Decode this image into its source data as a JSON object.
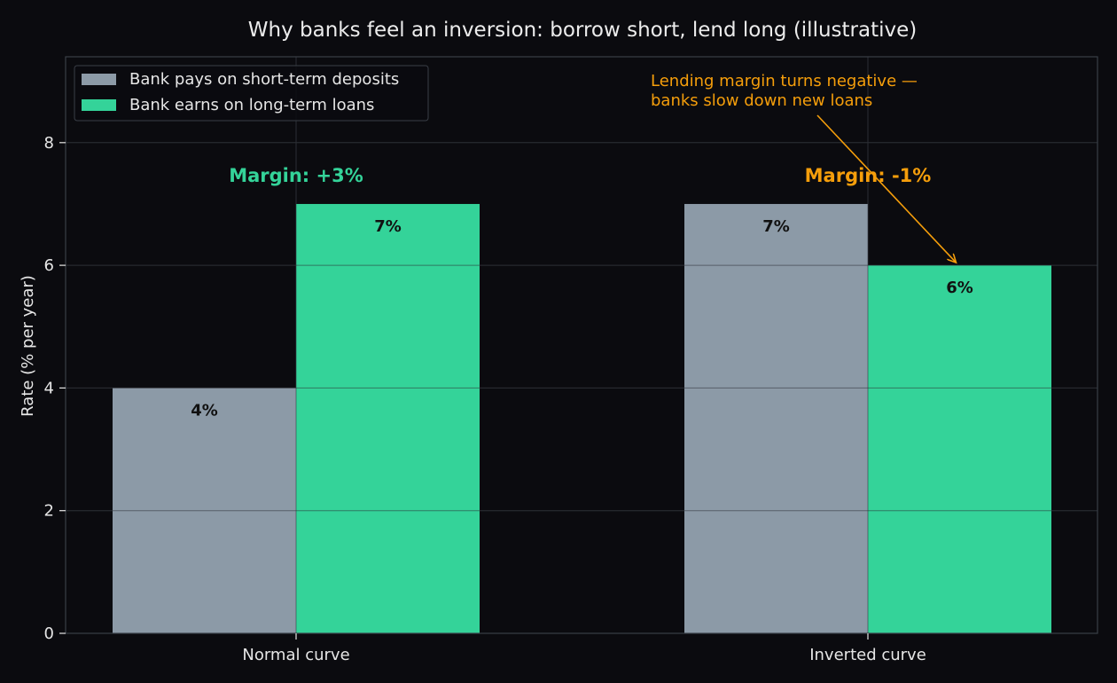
{
  "chart_data": {
    "type": "bar",
    "title": "Why banks feel an inversion: borrow short, lend long (illustrative)",
    "xlabel": "",
    "ylabel": "Rate (% per year)",
    "categories": [
      "Normal curve",
      "Inverted curve"
    ],
    "ylim": [
      0,
      9.4
    ],
    "yticks": [
      0,
      2,
      4,
      6,
      8
    ],
    "grid": true,
    "legend_position": "top-left",
    "series": [
      {
        "name": "Bank pays on short-term deposits",
        "values": [
          4,
          7
        ],
        "labels": [
          "4%",
          "7%"
        ],
        "color": "#8c9aa7"
      },
      {
        "name": "Bank earns on long-term loans",
        "values": [
          7,
          6
        ],
        "labels": [
          "7%",
          "6%"
        ],
        "color": "#34d399"
      }
    ],
    "margin_labels": [
      {
        "text": "Margin: +3%",
        "color": "#34d399"
      },
      {
        "text": "Margin: -1%",
        "color": "#f59e0b"
      }
    ],
    "annotation": {
      "lines": [
        "Lending margin turns negative —",
        "banks slow down new loans"
      ],
      "color": "#f59e0b",
      "target": {
        "category": "Inverted curve",
        "series": 1,
        "value": 6
      }
    }
  },
  "colors": {
    "background": "#0b0b0f",
    "axis": "#3a3f47",
    "grid": "#2a2d33",
    "text": "#e6e6e6"
  }
}
